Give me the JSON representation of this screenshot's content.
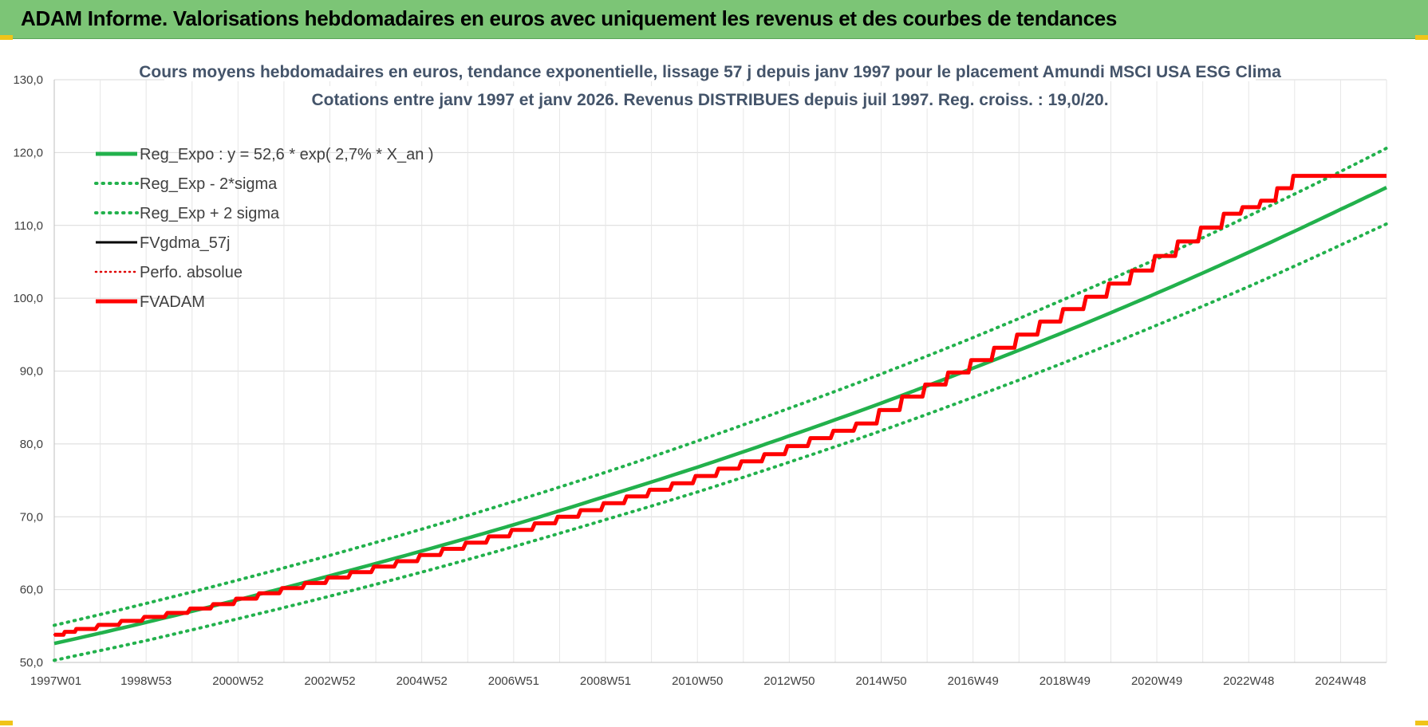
{
  "header": {
    "title": "ADAM Informe. Valorisations hebdomadaires en euros avec uniquement les revenus et des courbes de tendances"
  },
  "colors": {
    "banner": "#7cc576",
    "reg_expo": "#22b14c",
    "reg_band": "#22b14c",
    "fvgdma": "#000000",
    "perfo": "#e00000",
    "fvadam": "#ff0000",
    "grid": "#d9d9d9",
    "title_text": "#44546a"
  },
  "chart_data": {
    "type": "line",
    "title": "Cours moyens hebdomadaires en euros, tendance exponentielle, lissage 57 j depuis janv 1997 pour le placement Amundi MSCI USA ESG Clima",
    "subtitle": "Cotations entre janv 1997 et janv 2026. Revenus DISTRIBUES depuis juil 1997. Reg. croiss. : 19,0/20.",
    "xlabel": "",
    "ylabel": "",
    "x_range": [
      1997.0,
      2026.0
    ],
    "ylim": [
      50,
      130
    ],
    "y_ticks": [
      "50,0",
      "60,0",
      "70,0",
      "80,0",
      "90,0",
      "100,0",
      "110,0",
      "120,0",
      "130,0"
    ],
    "x_tick_labels": [
      "1997W01",
      "1998W53",
      "2000W52",
      "2002W52",
      "2004W52",
      "2006W51",
      "2008W51",
      "2010W50",
      "2012W50",
      "2014W50",
      "2016W49",
      "2018W49",
      "2020W49",
      "2022W48",
      "2024W48"
    ],
    "x_tick_years": [
      1997.0,
      1999.0,
      2001.0,
      2003.0,
      2005.0,
      2007.0,
      2009.0,
      2011.0,
      2013.0,
      2015.0,
      2017.0,
      2019.0,
      2021.0,
      2023.0,
      2025.0
    ],
    "grid": true,
    "legend_position": "top-left",
    "series": [
      {
        "name": "Reg_Expo : y = 52,6 * exp( 2,7% *  X_an )",
        "style": "solid",
        "x": [
          1997,
          1999,
          2001,
          2003,
          2005,
          2007,
          2009,
          2011,
          2013,
          2015,
          2017,
          2019,
          2021,
          2023,
          2025,
          2026
        ],
        "y": [
          52.6,
          55.5,
          58.6,
          61.9,
          65.3,
          68.9,
          72.8,
          76.8,
          81.1,
          85.6,
          90.4,
          95.4,
          100.7,
          106.3,
          112.2,
          115.2
        ]
      },
      {
        "name": "Reg_Exp - 2*sigma",
        "style": "dotted",
        "x": [
          1997,
          1999,
          2001,
          2003,
          2005,
          2007,
          2009,
          2011,
          2013,
          2015,
          2017,
          2019,
          2021,
          2023,
          2025,
          2026
        ],
        "y": [
          50.3,
          53.0,
          56.0,
          59.1,
          62.4,
          65.9,
          69.6,
          73.4,
          77.5,
          81.8,
          86.4,
          91.2,
          96.3,
          101.6,
          107.3,
          110.2
        ]
      },
      {
        "name": "Reg_Exp + 2 sigma",
        "style": "dotted",
        "x": [
          1997,
          1999,
          2001,
          2003,
          2005,
          2007,
          2009,
          2011,
          2013,
          2015,
          2017,
          2019,
          2021,
          2023,
          2025,
          2026
        ],
        "y": [
          55.1,
          58.1,
          61.3,
          64.7,
          68.3,
          72.1,
          76.1,
          80.4,
          84.9,
          89.6,
          94.6,
          99.9,
          105.4,
          111.3,
          117.4,
          120.6
        ]
      },
      {
        "name": "FVgdma_57j",
        "style": "solid",
        "x": [
          1997.0,
          1997.5,
          1998.5,
          1999.5,
          2000.5,
          2001.5,
          2002.5,
          2003.5,
          2004.5,
          2005.5,
          2006.5,
          2007.5,
          2008.5,
          2009.5,
          2010.5,
          2011.5,
          2012.5,
          2013.5,
          2014.5,
          2015.5,
          2016.5,
          2017.5,
          2018.5,
          2019.5,
          2020.5,
          2021.5,
          2022.5,
          2023.3,
          2024.0,
          2026.0
        ],
        "y": [
          53.8,
          54.6,
          55.7,
          56.8,
          58.0,
          59.5,
          60.9,
          62.4,
          63.9,
          65.6,
          67.3,
          69.1,
          70.9,
          72.8,
          74.6,
          76.6,
          78.6,
          80.8,
          82.8,
          86.5,
          89.8,
          93.2,
          96.8,
          100.2,
          103.8,
          107.8,
          111.6,
          113.4,
          116.8,
          116.8
        ]
      },
      {
        "name": "Perfo. absolue",
        "style": "dotted",
        "x": [
          1997.0,
          1997.5,
          1998.5,
          1999.5,
          2000.5,
          2001.5,
          2002.5,
          2003.5,
          2004.5,
          2005.5,
          2006.5,
          2007.5,
          2008.5,
          2009.5,
          2010.5,
          2011.5,
          2012.5,
          2013.5,
          2014.5,
          2015.5,
          2016.5,
          2017.5,
          2018.5,
          2019.5,
          2020.5,
          2021.5,
          2022.5,
          2023.3,
          2024.0,
          2026.0
        ],
        "y": [
          53.8,
          54.6,
          55.7,
          56.8,
          58.0,
          59.5,
          60.9,
          62.4,
          63.9,
          65.6,
          67.3,
          69.1,
          70.9,
          72.8,
          74.6,
          76.6,
          78.6,
          80.8,
          82.8,
          86.5,
          89.8,
          93.2,
          96.8,
          100.2,
          103.8,
          107.8,
          111.6,
          113.4,
          116.8,
          116.8
        ]
      },
      {
        "name": "FVADAM",
        "style": "solid",
        "x": [
          1997.0,
          1997.5,
          1998.5,
          1999.5,
          2000.5,
          2001.5,
          2002.5,
          2003.5,
          2004.5,
          2005.5,
          2006.5,
          2007.5,
          2008.5,
          2009.5,
          2010.5,
          2011.5,
          2012.5,
          2013.5,
          2014.5,
          2015.5,
          2016.5,
          2017.5,
          2018.5,
          2019.5,
          2020.5,
          2021.5,
          2022.5,
          2023.3,
          2024.0,
          2026.0
        ],
        "y": [
          53.8,
          54.6,
          55.7,
          56.8,
          58.0,
          59.5,
          60.9,
          62.4,
          63.9,
          65.6,
          67.3,
          69.1,
          70.9,
          72.8,
          74.6,
          76.6,
          78.6,
          80.8,
          82.8,
          86.5,
          89.8,
          93.2,
          96.8,
          100.2,
          103.8,
          107.8,
          111.6,
          113.4,
          116.8,
          116.8
        ]
      }
    ]
  }
}
